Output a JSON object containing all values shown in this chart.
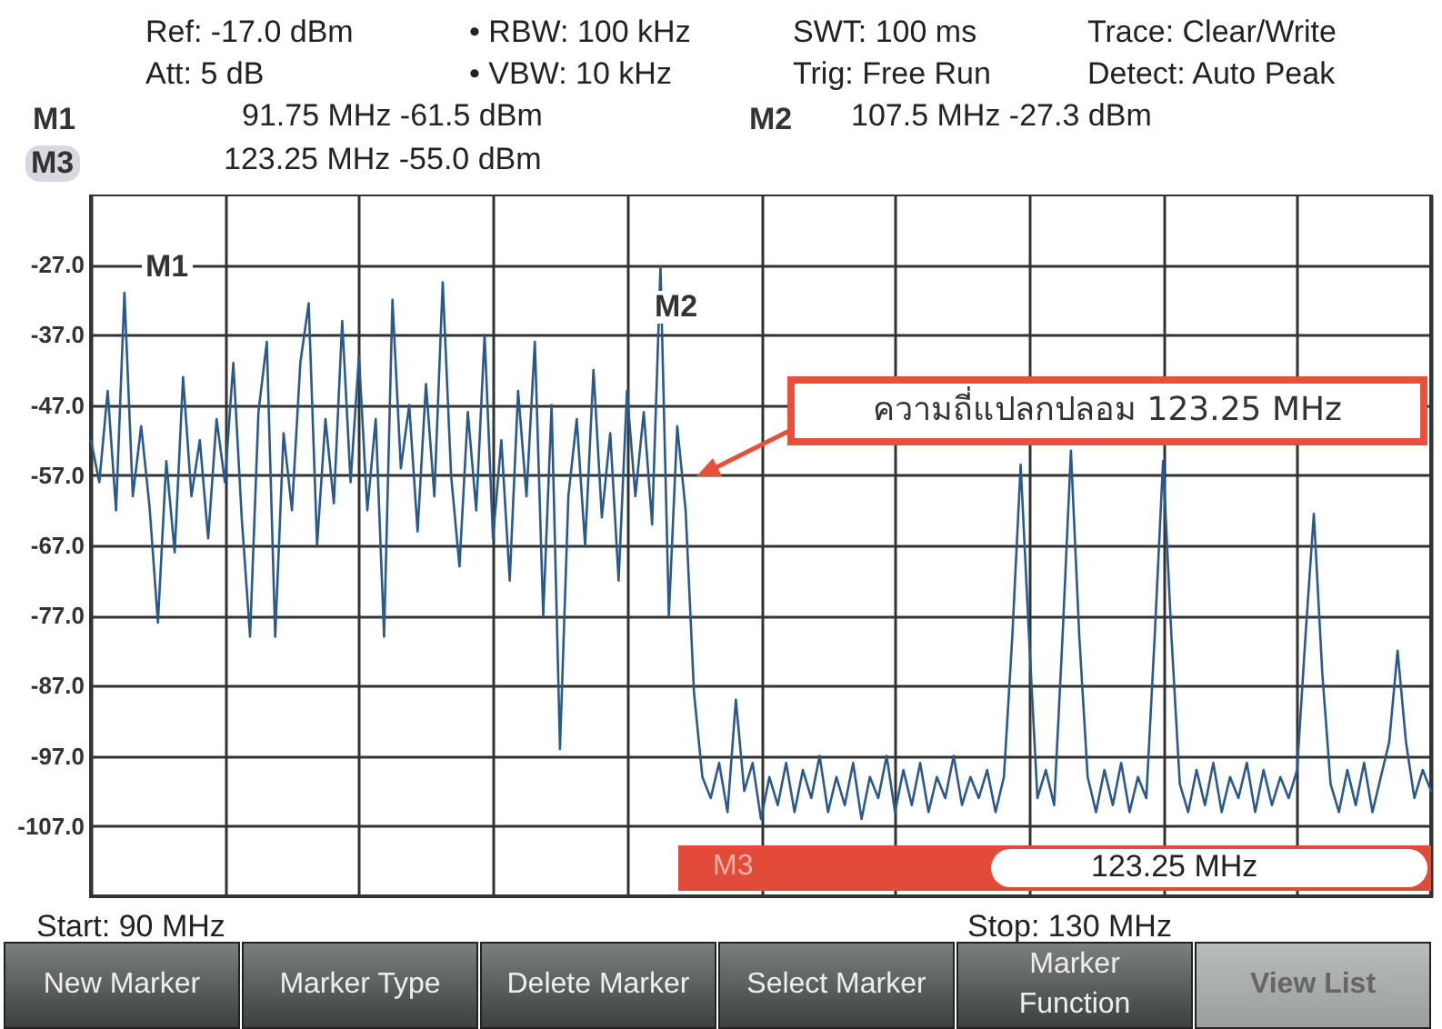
{
  "chart_data": {
    "type": "line",
    "categories": [
      null,
      null,
      null,
      null,
      null,
      null,
      null,
      null,
      null,
      null,
      null,
      null,
      null,
      null,
      null,
      null,
      null,
      null,
      null,
      null,
      null,
      null,
      null,
      null,
      null,
      null,
      null,
      null,
      null,
      null,
      null,
      null,
      null,
      null,
      null,
      null,
      null,
      null,
      null,
      null,
      null,
      null,
      null,
      null,
      null,
      null,
      null,
      null,
      null,
      null,
      null,
      null,
      null,
      null,
      null,
      null,
      null,
      null,
      null,
      null,
      null,
      null,
      null,
      null,
      null,
      null,
      null,
      null,
      null,
      null,
      null,
      null,
      null,
      null,
      null,
      null,
      null,
      null,
      null,
      null,
      null,
      null,
      null,
      null,
      null,
      null,
      null,
      null,
      null,
      null,
      null,
      null,
      null,
      null,
      null,
      null,
      null,
      null,
      null,
      null,
      null,
      null,
      null,
      null,
      null,
      null,
      null,
      null,
      null,
      null,
      null,
      null,
      null,
      null,
      null,
      null,
      null,
      null,
      null,
      null,
      null,
      null,
      null,
      null,
      null,
      null,
      null,
      null,
      null,
      null,
      null,
      null,
      null,
      null,
      null,
      null,
      null,
      null,
      null,
      null,
      null,
      null,
      null,
      null,
      null,
      null,
      null,
      null,
      null,
      null,
      null,
      null,
      null,
      null,
      null,
      null,
      null,
      null,
      null,
      null,
      null
    ],
    "series": [
      {
        "color": "#2a5a8c",
        "values": [
          -52,
          -58,
          -45,
          -62,
          -31,
          -60,
          -50,
          -61.5,
          -78,
          -55,
          -68,
          -43,
          -60,
          -52,
          -66,
          -49,
          -58,
          -41,
          -63,
          -80,
          -48,
          -38,
          -80,
          -51,
          -62,
          -41,
          -32.5,
          -67,
          -49,
          -61,
          -35,
          -58,
          -40,
          -62,
          -49,
          -80,
          -32,
          -56,
          -47,
          -65,
          -44,
          -60,
          -29.5,
          -57,
          -70,
          -48,
          -62,
          -37,
          -66,
          -52,
          -72,
          -45,
          -60,
          -38,
          -77,
          -47,
          -96,
          -60,
          -49,
          -67,
          -42,
          -63,
          -51,
          -72,
          -45,
          -60,
          -48,
          -64,
          -27.3,
          -77,
          -50,
          -62,
          -88,
          -100,
          -103,
          -98,
          -105,
          -89,
          -102,
          -98,
          -106,
          -100,
          -104,
          -98,
          -105,
          -99,
          -103,
          -97,
          -105,
          -100,
          -104,
          -98,
          -106,
          -100,
          -103,
          -97,
          -105,
          -99,
          -104,
          -98,
          -105,
          -100,
          -103,
          -97,
          -104,
          -100,
          -103,
          -99,
          -105,
          -100,
          -80,
          -55.5,
          -80,
          -103,
          -99,
          -104,
          -80,
          -53.5,
          -80,
          -100,
          -105,
          -99,
          -104,
          -98,
          -105,
          -100,
          -103,
          -80,
          -55,
          -80,
          -101,
          -105,
          -99,
          -104,
          -98,
          -105,
          -100,
          -103,
          -98,
          -105,
          -99,
          -104,
          -100,
          -103,
          -99,
          -80,
          -62.5,
          -85,
          -101,
          -105,
          -99,
          -104,
          -98,
          -105,
          -100,
          -95,
          -82,
          -95,
          -103,
          -99,
          -102
        ]
      }
    ],
    "ylim": [
      -117,
      -17
    ],
    "yticks": [
      {
        "value": -27,
        "label": "-27.0"
      },
      {
        "value": -37,
        "label": "-37.0"
      },
      {
        "value": -47,
        "label": "-47.0"
      },
      {
        "value": -57,
        "label": "-57.0"
      },
      {
        "value": -67,
        "label": "-67.0"
      },
      {
        "value": -77,
        "label": "-77.0"
      },
      {
        "value": -87,
        "label": "-87.0"
      },
      {
        "value": -97,
        "label": "-97.0"
      },
      {
        "value": -107,
        "label": "-107.0"
      }
    ],
    "grid": true,
    "annotations": [
      "Ref: -17.0 dBm",
      "• RBW: 100 kHz",
      "SWT: 100 ms",
      "Trace: Clear/Write",
      "Att: 5 dB",
      "• VBW: 10 kHz",
      "Trig: Free Run",
      "Detect: Auto Peak",
      "M1",
      "91.75 MHz -61.5 dBm",
      "M2",
      "107.5 MHz -27.3 dBm",
      "M3",
      "123.25 MHz -55.0 dBm",
      "Start: 90 MHz",
      "Stop: 130 MHz",
      "New Marker",
      "Marker Type",
      "Delete Marker",
      "Select Marker",
      "Marker Function",
      "View List",
      "M3",
      "123.25 MHz",
      "M1",
      "M2",
      "ความถี่แปลกปลอม 123.25 MHz"
    ]
  }
}
